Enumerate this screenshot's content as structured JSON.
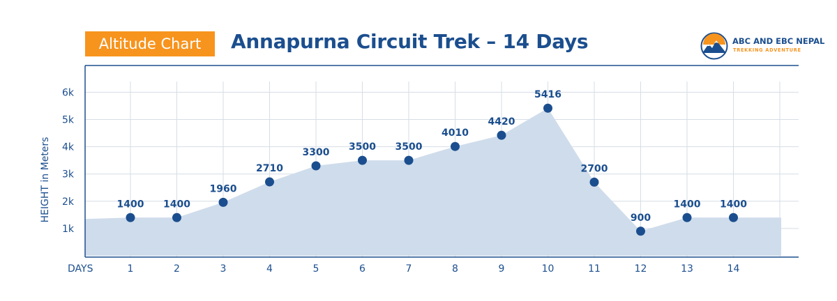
{
  "header": {
    "badge": "Altitude Chart",
    "title": "Annapurna Circuit Trek – 14 Days"
  },
  "logo": {
    "name": "ABC AND EBC NEPAL",
    "tagline": "TREKKING ADVENTURE",
    "icon": "mountain-sun-icon"
  },
  "colors": {
    "accent": "#f7941d",
    "primary": "#1b4e8e",
    "area": "#cfdceb",
    "point": "#1b4e8e",
    "grid": "#d6dde6"
  },
  "chart_data": {
    "type": "area",
    "xlabel": "DAYS",
    "ylabel": "HEIGHT in Meters",
    "categories": [
      1,
      2,
      3,
      4,
      5,
      6,
      7,
      8,
      9,
      10,
      11,
      12,
      13,
      14
    ],
    "series": [
      {
        "values": [
          1400,
          1400,
          1960,
          2710,
          3300,
          3500,
          3500,
          4010,
          4420,
          5416,
          2700,
          900,
          1400,
          1400
        ]
      }
    ],
    "ytick_labels": [
      "1k",
      "2k",
      "3k",
      "4k",
      "5k",
      "6k"
    ],
    "ytick_values": [
      1000,
      2000,
      3000,
      4000,
      5000,
      6000
    ],
    "grid": true
  }
}
